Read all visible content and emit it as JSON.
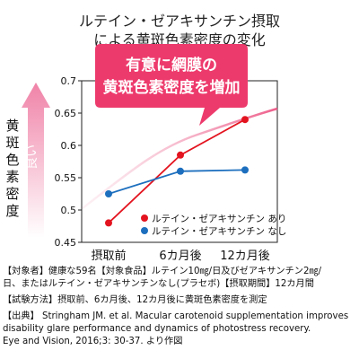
{
  "title_lines": [
    "ルテイン・ゼアキサンチン摂取",
    "による黄斑色素密度の変化"
  ],
  "callout_lines": [
    "有意に網膜の",
    "黄斑色素密度を増加"
  ],
  "side_label_chars": [
    "黄",
    "斑",
    "色",
    "素",
    "密",
    "度"
  ],
  "arrow_label": "良い",
  "colors": {
    "red_series": "#e3141f",
    "blue_series": "#1d6fbe",
    "callout": "#ed3a6c",
    "arrow": "#f083a8"
  },
  "chart_data": {
    "type": "line",
    "categories": [
      "摂取前",
      "6カ月後",
      "12カ月後"
    ],
    "ylim": [
      0.45,
      0.7
    ],
    "yticks": [
      0.45,
      0.5,
      0.55,
      0.6,
      0.65,
      0.7
    ],
    "ytick_labels": [
      "0.45",
      "0.5",
      "0.55",
      "0.6",
      "0.65",
      "0.7"
    ],
    "grid": false,
    "legend_position": "bottom-right",
    "series": [
      {
        "name": "ルテイン・ゼアキサンチン あり",
        "color": "#e3141f",
        "values": [
          0.48,
          0.585,
          0.64
        ]
      },
      {
        "name": "ルテイン・ゼアキサンチン なし",
        "color": "#1d6fbe",
        "values": [
          0.525,
          0.56,
          0.562
        ]
      }
    ]
  },
  "notes": [
    "【対象者】健康な59名【対象食品】ルテイン10㎎/日及びゼアキサンチン2㎎/",
    "日、またはルテイン・ゼアキサンチンなし(プラセボ)【摂取期間】12カ月間",
    "【試験方法】摂取前、6カ月後、12カ月後に黄斑色素密度を測定",
    "【出典】 Stringham JM. et al. Macular carotenoid supplementation improves",
    "disability glare performance and dynamics of photostress recovery.",
    "Eye and Vision, 2016;3: 30-37. より作図"
  ]
}
